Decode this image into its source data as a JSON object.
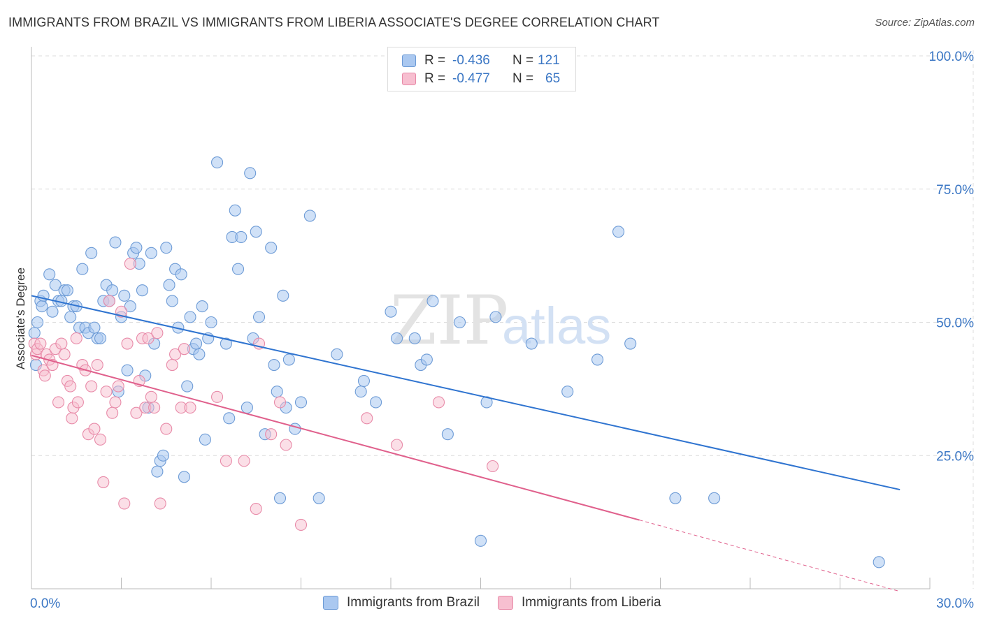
{
  "header": {
    "title": "IMMIGRANTS FROM BRAZIL VS IMMIGRANTS FROM LIBERIA ASSOCIATE'S DEGREE CORRELATION CHART",
    "source": "Source: ZipAtlas.com"
  },
  "watermark": {
    "zip": "ZIP",
    "atlas": "atlas"
  },
  "legend": {
    "brazil": {
      "r_label": "R =",
      "r_value": "-0.436",
      "n_label": "N =",
      "n_value": "121"
    },
    "liberia": {
      "r_label": "R =",
      "r_value": "-0.477",
      "n_label": "N =",
      "n_value": "65"
    }
  },
  "colors": {
    "brazil_fill": "#aac8f0",
    "brazil_stroke": "#6d9bd6",
    "brazil_line": "#2f74d0",
    "liberia_fill": "#f7bfd0",
    "liberia_stroke": "#e88aa8",
    "liberia_line": "#e0608c",
    "tick_label": "#3a76c4",
    "grid": "#dcdcdc"
  },
  "chart_data": {
    "type": "scatter",
    "title": "IMMIGRANTS FROM BRAZIL VS IMMIGRANTS FROM LIBERIA ASSOCIATE'S DEGREE CORRELATION CHART",
    "xlabel": "",
    "ylabel": "Associate's Degree",
    "xlim": [
      0,
      30
    ],
    "ylim": [
      0,
      100
    ],
    "x_tick_labels": [
      "0.0%",
      "30.0%"
    ],
    "y_ticks": [
      25,
      50,
      75,
      100
    ],
    "y_tick_labels": [
      "25.0%",
      "50.0%",
      "75.0%",
      "100.0%"
    ],
    "grid": true,
    "legend_position": "top-center",
    "series": [
      {
        "name": "Immigrants from Brazil",
        "r": -0.436,
        "n": 121,
        "trend": {
          "x": [
            0,
            29
          ],
          "y": [
            55.0,
            18.6
          ]
        },
        "points": [
          [
            0.1,
            48
          ],
          [
            0.15,
            42
          ],
          [
            0.2,
            50
          ],
          [
            0.3,
            54
          ],
          [
            0.35,
            53
          ],
          [
            0.4,
            55
          ],
          [
            0.6,
            59
          ],
          [
            0.7,
            52
          ],
          [
            0.8,
            57
          ],
          [
            0.9,
            54
          ],
          [
            1.0,
            54
          ],
          [
            1.1,
            56
          ],
          [
            1.2,
            56
          ],
          [
            1.3,
            51
          ],
          [
            1.4,
            53
          ],
          [
            1.5,
            53
          ],
          [
            1.6,
            49
          ],
          [
            1.7,
            60
          ],
          [
            1.8,
            49
          ],
          [
            1.9,
            48
          ],
          [
            2.0,
            63
          ],
          [
            2.1,
            49
          ],
          [
            2.2,
            47
          ],
          [
            2.3,
            47
          ],
          [
            2.4,
            54
          ],
          [
            2.5,
            57
          ],
          [
            2.6,
            54
          ],
          [
            2.7,
            56
          ],
          [
            2.8,
            65
          ],
          [
            2.9,
            37
          ],
          [
            3.0,
            51
          ],
          [
            3.1,
            55
          ],
          [
            3.2,
            41
          ],
          [
            3.3,
            53
          ],
          [
            3.4,
            63
          ],
          [
            3.5,
            64
          ],
          [
            3.6,
            61
          ],
          [
            3.7,
            56
          ],
          [
            3.8,
            40
          ],
          [
            3.9,
            34
          ],
          [
            4.0,
            63
          ],
          [
            4.1,
            46
          ],
          [
            4.2,
            22
          ],
          [
            4.3,
            24
          ],
          [
            4.4,
            25
          ],
          [
            4.5,
            64
          ],
          [
            4.6,
            57
          ],
          [
            4.7,
            54
          ],
          [
            4.8,
            60
          ],
          [
            4.9,
            49
          ],
          [
            5.0,
            59
          ],
          [
            5.1,
            21
          ],
          [
            5.2,
            38
          ],
          [
            5.3,
            51
          ],
          [
            5.4,
            45
          ],
          [
            5.5,
            46
          ],
          [
            5.6,
            44
          ],
          [
            5.7,
            53
          ],
          [
            5.8,
            28
          ],
          [
            5.9,
            47
          ],
          [
            6.0,
            50
          ],
          [
            6.2,
            80
          ],
          [
            6.5,
            46
          ],
          [
            6.6,
            32
          ],
          [
            6.7,
            66
          ],
          [
            6.8,
            71
          ],
          [
            6.9,
            60
          ],
          [
            7.0,
            66
          ],
          [
            7.2,
            34
          ],
          [
            7.3,
            78
          ],
          [
            7.4,
            47
          ],
          [
            7.5,
            67
          ],
          [
            7.6,
            51
          ],
          [
            7.8,
            29
          ],
          [
            8.0,
            64
          ],
          [
            8.1,
            42
          ],
          [
            8.2,
            37
          ],
          [
            8.3,
            17
          ],
          [
            8.4,
            55
          ],
          [
            8.5,
            34
          ],
          [
            8.6,
            43
          ],
          [
            8.8,
            30
          ],
          [
            9.0,
            35
          ],
          [
            9.3,
            70
          ],
          [
            9.6,
            17
          ],
          [
            10.2,
            44
          ],
          [
            11.0,
            37
          ],
          [
            11.1,
            39
          ],
          [
            11.5,
            35
          ],
          [
            12.0,
            52
          ],
          [
            12.2,
            47
          ],
          [
            12.8,
            47
          ],
          [
            13.0,
            42
          ],
          [
            13.2,
            43
          ],
          [
            13.4,
            54
          ],
          [
            13.9,
            29
          ],
          [
            14.3,
            50
          ],
          [
            15.0,
            9
          ],
          [
            15.2,
            35
          ],
          [
            15.5,
            51
          ],
          [
            16.7,
            46
          ],
          [
            17.9,
            37
          ],
          [
            18.9,
            43
          ],
          [
            19.6,
            67
          ],
          [
            20.0,
            46
          ],
          [
            21.5,
            17
          ],
          [
            22.8,
            17
          ],
          [
            28.3,
            5
          ]
        ]
      },
      {
        "name": "Immigrants from Liberia",
        "r": -0.477,
        "n": 65,
        "trend": {
          "x": [
            0,
            20.3
          ],
          "y": [
            43.8,
            12.9
          ]
        },
        "trend_dashed": {
          "x": [
            20.3,
            29
          ],
          "y": [
            12.9,
            -0.5
          ]
        },
        "points": [
          [
            0.1,
            46
          ],
          [
            0.15,
            44
          ],
          [
            0.2,
            45
          ],
          [
            0.3,
            46
          ],
          [
            0.4,
            41
          ],
          [
            0.45,
            40
          ],
          [
            0.5,
            44
          ],
          [
            0.6,
            43
          ],
          [
            0.7,
            42
          ],
          [
            0.8,
            45
          ],
          [
            0.9,
            35
          ],
          [
            1.0,
            46
          ],
          [
            1.1,
            44
          ],
          [
            1.2,
            39
          ],
          [
            1.3,
            38
          ],
          [
            1.35,
            32
          ],
          [
            1.4,
            34
          ],
          [
            1.5,
            47
          ],
          [
            1.55,
            35
          ],
          [
            1.7,
            42
          ],
          [
            1.8,
            41
          ],
          [
            1.9,
            29
          ],
          [
            2.0,
            38
          ],
          [
            2.1,
            30
          ],
          [
            2.2,
            42
          ],
          [
            2.3,
            28
          ],
          [
            2.4,
            20
          ],
          [
            2.5,
            37
          ],
          [
            2.6,
            54
          ],
          [
            2.7,
            33
          ],
          [
            2.8,
            35
          ],
          [
            2.9,
            38
          ],
          [
            3.0,
            52
          ],
          [
            3.1,
            16
          ],
          [
            3.2,
            46
          ],
          [
            3.3,
            61
          ],
          [
            3.5,
            33
          ],
          [
            3.6,
            39
          ],
          [
            3.7,
            47
          ],
          [
            3.8,
            34
          ],
          [
            3.9,
            47
          ],
          [
            4.0,
            36
          ],
          [
            4.1,
            34
          ],
          [
            4.2,
            48
          ],
          [
            4.3,
            16
          ],
          [
            4.5,
            30
          ],
          [
            4.7,
            42
          ],
          [
            4.8,
            44
          ],
          [
            5.0,
            34
          ],
          [
            5.1,
            45
          ],
          [
            5.3,
            34
          ],
          [
            6.2,
            36
          ],
          [
            6.5,
            24
          ],
          [
            7.1,
            24
          ],
          [
            7.5,
            15
          ],
          [
            7.6,
            46
          ],
          [
            8.0,
            29
          ],
          [
            8.3,
            35
          ],
          [
            8.5,
            27
          ],
          [
            9.0,
            12
          ],
          [
            11.2,
            32
          ],
          [
            12.2,
            27
          ],
          [
            13.6,
            35
          ],
          [
            15.4,
            23
          ]
        ]
      }
    ]
  },
  "bottom_legend": {
    "brazil_label": "Immigrants from Brazil",
    "liberia_label": "Immigrants from Liberia"
  }
}
